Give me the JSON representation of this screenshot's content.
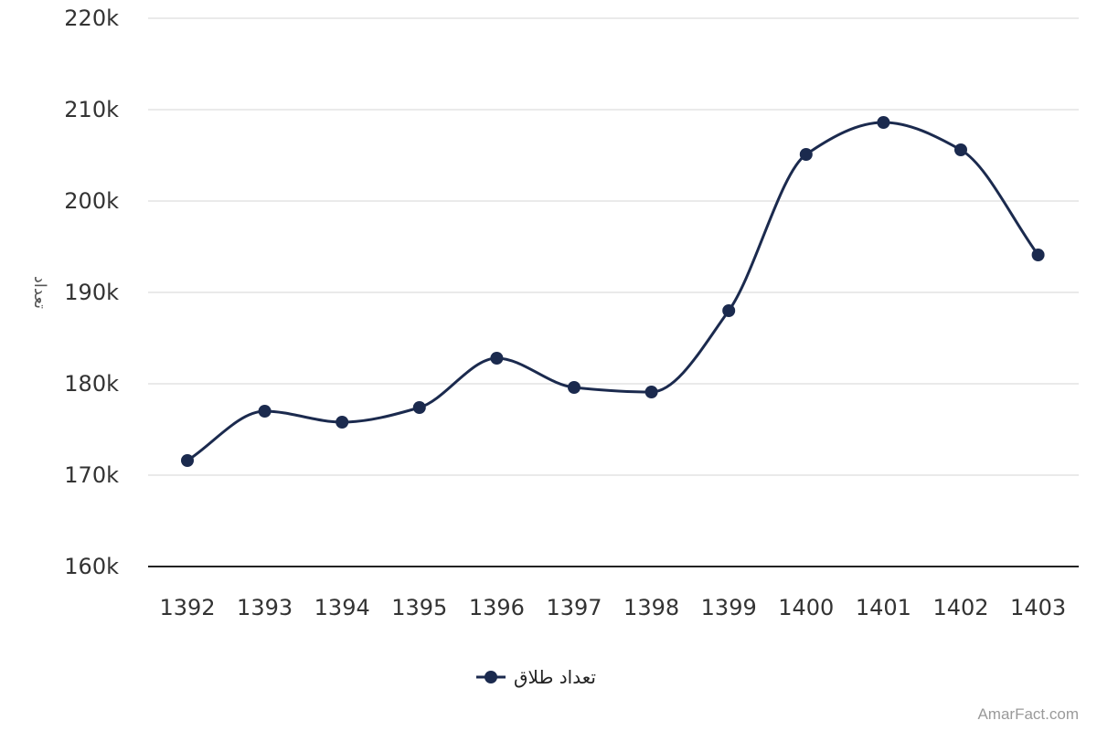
{
  "chart_data": {
    "type": "line",
    "ylabel": "تعداد",
    "xlabel": "",
    "categories": [
      "1392",
      "1393",
      "1394",
      "1395",
      "1396",
      "1397",
      "1398",
      "1399",
      "1400",
      "1401",
      "1402",
      "1403"
    ],
    "series": [
      {
        "name": "تعداد طلاق",
        "values": [
          171600,
          177000,
          175800,
          177400,
          182800,
          179600,
          179100,
          188000,
          205100,
          208600,
          205600,
          194100
        ],
        "color": "#1b2a4e"
      }
    ],
    "ylim": [
      160000,
      220000
    ],
    "yticks": [
      160000,
      170000,
      180000,
      190000,
      200000,
      210000,
      220000
    ],
    "ytick_labels": [
      "160k",
      "170k",
      "180k",
      "190k",
      "200k",
      "210k",
      "220k"
    ],
    "grid": true,
    "legend": "bottom-center",
    "smooth": true
  },
  "credit": "AmarFact.com"
}
